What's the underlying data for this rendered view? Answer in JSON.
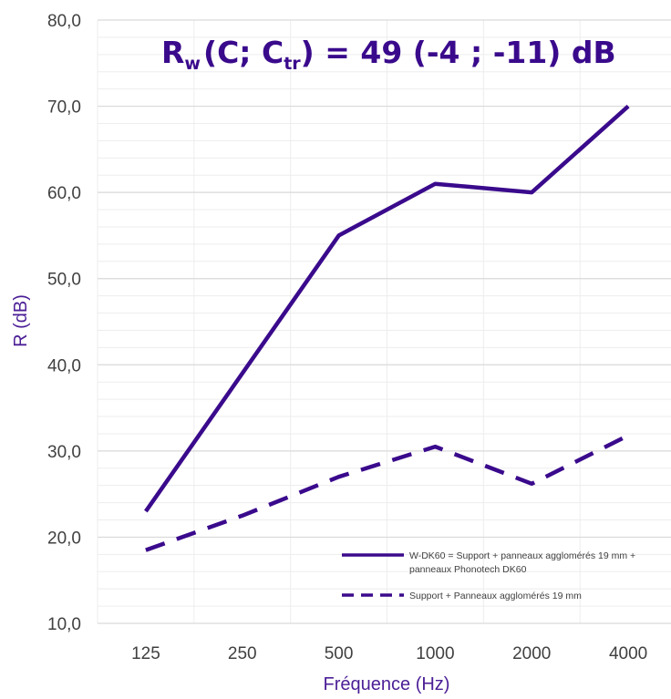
{
  "chart_data": {
    "type": "line",
    "title": {
      "prefix": "R",
      "sub_w": "w",
      "mid": "(C; C",
      "sub_tr": "tr",
      "suffix": ") = 49 (-4 ; -11) dB"
    },
    "xlabel": "Fréquence (Hz)",
    "ylabel": "R (dB)",
    "categories": [
      "125",
      "250",
      "500",
      "1000",
      "2000",
      "4000"
    ],
    "ylim": [
      10,
      80
    ],
    "ytick_labels": [
      "10,0",
      "20,0",
      "30,0",
      "40,0",
      "50,0",
      "60,0",
      "70,0",
      "80,0"
    ],
    "grid": true,
    "legend_position": "bottom-right",
    "series": [
      {
        "name_lines": [
          "W-DK60 = Support + panneaux agglomérés 19 mm +",
          "panneaux Phonotech DK60"
        ],
        "values": [
          23,
          39,
          55,
          61,
          60,
          70
        ],
        "style": "solid"
      },
      {
        "name_lines": [
          "Support + Panneaux agglomérés 19 mm"
        ],
        "values": [
          18.5,
          22.5,
          27,
          30.5,
          26.2,
          31.8
        ],
        "style": "dashed"
      }
    ],
    "colors": {
      "line": "#3a0a8c",
      "axis_title": "#4b1e96",
      "grid": "#d9d9d9",
      "tick": "#404040"
    }
  }
}
